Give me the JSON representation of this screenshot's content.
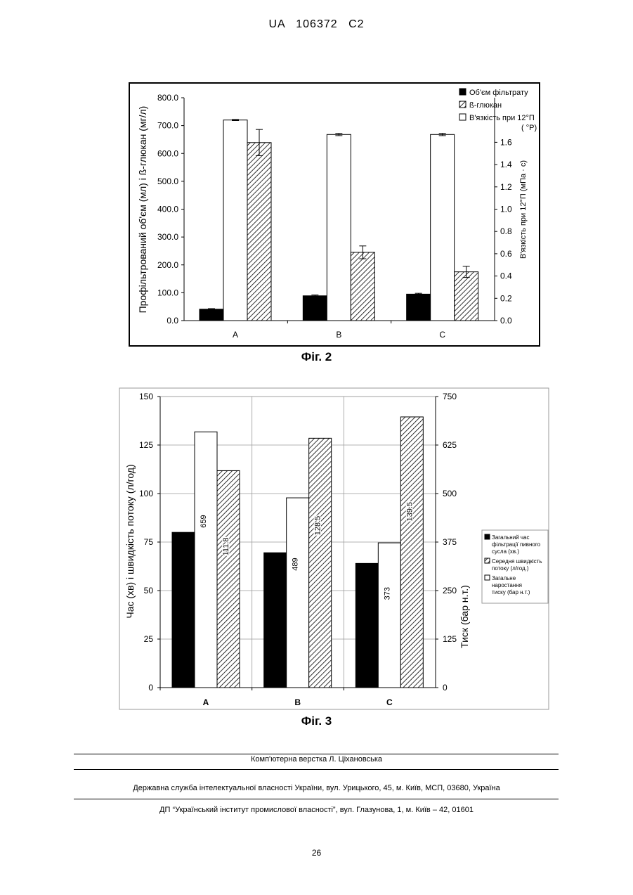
{
  "doc": {
    "header": "UA 106372 C2",
    "page_number": "26"
  },
  "footer": {
    "layout_credit": "Комп'ютерна верстка Л. Ціхановська",
    "office": "Державна служба інтелектуальної власності України, вул. Урицького, 45, м. Київ, МСП, 03680, Україна",
    "institute": "ДП “Український інститут промислової власності”, вул. Глазунова, 1, м. Київ – 42, 01601"
  },
  "colors": {
    "black_fill": "#000000",
    "white_fill": "#ffffff",
    "hatch": "#000000"
  },
  "chart_data": [
    {
      "type": "bar",
      "caption": "Фіг. 2",
      "categories": [
        "A",
        "B",
        "C"
      ],
      "ylabel": "Профільтрований об'єм (мл) і ß-глюкан (мг/л)",
      "y2label": "В'язкість при 12°П (мПа · с)",
      "ylim": [
        0,
        800
      ],
      "y2lim": [
        0,
        2.0
      ],
      "yticks": [
        "0.0",
        "100.0",
        "200.0",
        "300.0",
        "400.0",
        "500.0",
        "600.0",
        "700.0",
        "800.0"
      ],
      "y2ticks": [
        "0.0",
        "0.2",
        "0.4",
        "0.6",
        "0.8",
        "1.0",
        "1.2",
        "1.4",
        "1.6"
      ],
      "legend_position": "top-right",
      "series": [
        {
          "name": "Об'єм фільтрату",
          "style": "black",
          "axis": "left",
          "values": [
            41,
            89,
            95
          ],
          "err": [
            2,
            3,
            3
          ]
        },
        {
          "name": "В'язкість при 12°П",
          "style": "white",
          "axis": "right",
          "values": [
            1.8,
            1.67,
            1.67
          ],
          "err": [
            0.005,
            0.01,
            0.01
          ]
        },
        {
          "name": "ß-глюкан",
          "style": "hatch",
          "axis": "left",
          "values": [
            639,
            245,
            175
          ],
          "err": [
            47,
            23,
            20
          ]
        }
      ],
      "legend_extra": "( °P)",
      "legend_order": [
        0,
        2,
        1
      ]
    },
    {
      "type": "bar",
      "caption": "Фіг. 3",
      "categories": [
        "A",
        "B",
        "C"
      ],
      "ylabel": "Час (хв) і швидкість потоку (л/год)",
      "y2label": "Тиск (бар н.т.)",
      "ylim": [
        0,
        150
      ],
      "y2lim": [
        0,
        750
      ],
      "yticks": [
        "0",
        "25",
        "50",
        "75",
        "100",
        "125",
        "150"
      ],
      "y2ticks": [
        "0",
        "125",
        "250",
        "375",
        "500",
        "625",
        "750"
      ],
      "grid": true,
      "legend_position": "right",
      "series": [
        {
          "name": "Загальний час фільтрації пивного сусла (хв.)",
          "style": "black",
          "axis": "left",
          "values": [
            80,
            69.5,
            64
          ]
        },
        {
          "name": "Загальне наростання тиску (бар н.т.)",
          "style": "white",
          "axis": "right",
          "values": [
            659,
            489,
            373
          ],
          "labels": [
            "659",
            "489",
            "373"
          ]
        },
        {
          "name": "Середня швидкість потоку (л/год.)",
          "style": "hatch",
          "axis": "left",
          "values": [
            111.8,
            128.5,
            139.5
          ],
          "labels": [
            "111.8",
            "128.5",
            "139.5"
          ]
        }
      ],
      "legend_order": [
        0,
        2,
        1
      ]
    }
  ]
}
